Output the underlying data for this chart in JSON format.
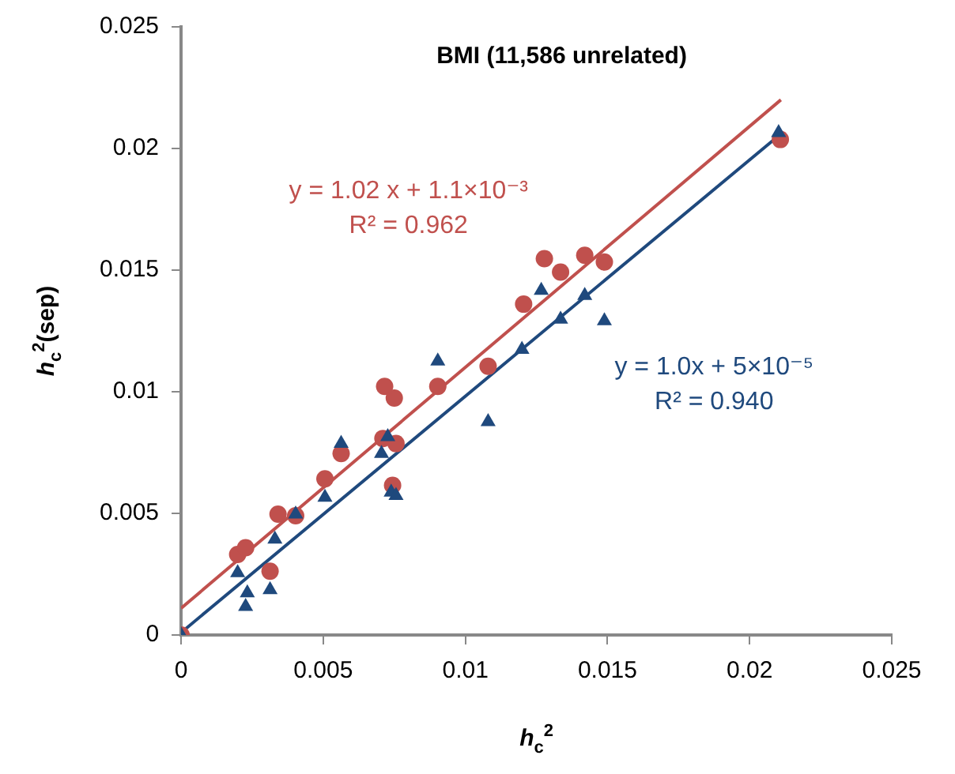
{
  "chart_data": {
    "type": "scatter",
    "title": "BMI (11,586 unrelated)",
    "xlabel": "h$_{c}$$^{2}$",
    "ylabel": "h$_{c}$$^{2}$(sep)",
    "xlim": [
      0,
      0.025
    ],
    "ylim": [
      0,
      0.025
    ],
    "xticks": [
      0,
      0.005,
      0.01,
      0.015,
      0.02,
      0.025
    ],
    "yticks": [
      0,
      0.005,
      0.01,
      0.015,
      0.02,
      0.025
    ],
    "grid": false,
    "legend": false,
    "series": [
      {
        "marker": "circle",
        "color": "#c0504d",
        "x": [
          0,
          0.00199,
          0.00227,
          0.00313,
          0.00341,
          0.00403,
          0.00506,
          0.00563,
          0.0071,
          0.00756,
          0.00744,
          0.00716,
          0.0075,
          0.00903,
          0.0108,
          0.01205,
          0.01278,
          0.01335,
          0.0142,
          0.01489,
          0.02108
        ],
        "values": [
          0,
          0.00331,
          0.00359,
          0.00262,
          0.00497,
          0.0049,
          0.00642,
          0.00746,
          0.00808,
          0.00787,
          0.00615,
          0.01022,
          0.00974,
          0.01022,
          0.01105,
          0.0136,
          0.01547,
          0.01492,
          0.01561,
          0.01533,
          0.02037
        ]
      },
      {
        "marker": "triangle",
        "color": "#1f497d",
        "x": [
          0,
          0.00199,
          0.00233,
          0.00227,
          0.00313,
          0.0033,
          0.00403,
          0.00506,
          0.00563,
          0.00705,
          0.00727,
          0.00739,
          0.00756,
          0.00903,
          0.0108,
          0.01199,
          0.01267,
          0.01335,
          0.0142,
          0.01489,
          0.02102
        ],
        "values": [
          0,
          0.00256,
          0.00173,
          0.00117,
          0.00186,
          0.00394,
          0.00497,
          0.00566,
          0.00787,
          0.00746,
          0.00815,
          0.00587,
          0.00573,
          0.01126,
          0.00877,
          0.01174,
          0.01416,
          0.01298,
          0.01395,
          0.01291,
          0.02065
        ]
      },
      {
        "type": "line",
        "marker": "none",
        "color": "#c0504d",
        "x": [
          0,
          0.0211
        ],
        "values": [
          0.0011,
          0.022
        ]
      },
      {
        "type": "line",
        "marker": "none",
        "color": "#1f497d",
        "x": [
          0,
          0.0211
        ],
        "values": [
          0.0001,
          0.0206
        ]
      }
    ],
    "annotations": [
      "y = 1.02 x + 1.1×10⁻³\nR² = 0.962",
      "y = 1.0x + 5×10⁻⁵\nR² = 0.940"
    ]
  }
}
